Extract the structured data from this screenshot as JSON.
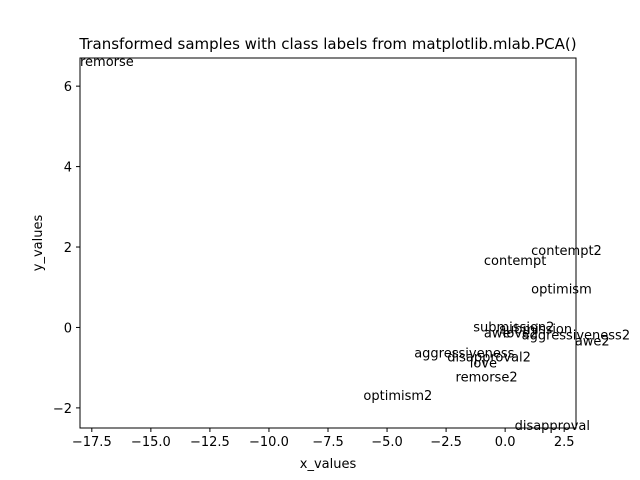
{
  "chart_data": {
    "type": "scatter",
    "title": "Transformed samples with class labels from matplotlib.mlab.PCA()",
    "xlabel": "x_values",
    "ylabel": "y_values",
    "xlim": [
      -18.0,
      3.0
    ],
    "ylim": [
      -2.5,
      6.7
    ],
    "xticks": [
      -17.5,
      -15.0,
      -12.5,
      -10.0,
      -7.5,
      -5.0,
      -2.5,
      0.0,
      2.5
    ],
    "xtick_labels": [
      "−17.5",
      "−15.0",
      "−12.5",
      "−10.0",
      "−7.5",
      "−5.0",
      "−2.5",
      "0.0",
      "2.5"
    ],
    "yticks": [
      -2,
      0,
      2,
      4,
      6
    ],
    "ytick_labels": [
      "−2",
      "0",
      "2",
      "4",
      "6"
    ],
    "grid": false,
    "marker": "none",
    "points": [
      {
        "label": "remorse",
        "x": -18.0,
        "y": 6.6
      },
      {
        "label": "contempt2",
        "x": 1.1,
        "y": 1.9
      },
      {
        "label": "contempt",
        "x": -0.9,
        "y": 1.65
      },
      {
        "label": "optimism",
        "x": 1.1,
        "y": 0.95
      },
      {
        "label": "submission2",
        "x": -1.35,
        "y": 0.0
      },
      {
        "label": "submission",
        "x": -0.25,
        "y": -0.05
      },
      {
        "label": "awe",
        "x": -0.9,
        "y": -0.15
      },
      {
        "label": "love2",
        "x": -0.1,
        "y": -0.15
      },
      {
        "label": "aggressiveness2",
        "x": 0.7,
        "y": -0.2
      },
      {
        "label": "awe2",
        "x": 2.95,
        "y": -0.35
      },
      {
        "label": "aggressiveness",
        "x": -3.85,
        "y": -0.65
      },
      {
        "label": "disapproval2",
        "x": -2.45,
        "y": -0.75
      },
      {
        "label": "love",
        "x": -1.5,
        "y": -0.9
      },
      {
        "label": "remorse2",
        "x": -2.1,
        "y": -1.25
      },
      {
        "label": "optimism2",
        "x": -6.0,
        "y": -1.7
      },
      {
        "label": "disapproval",
        "x": 0.4,
        "y": -2.45
      }
    ]
  }
}
